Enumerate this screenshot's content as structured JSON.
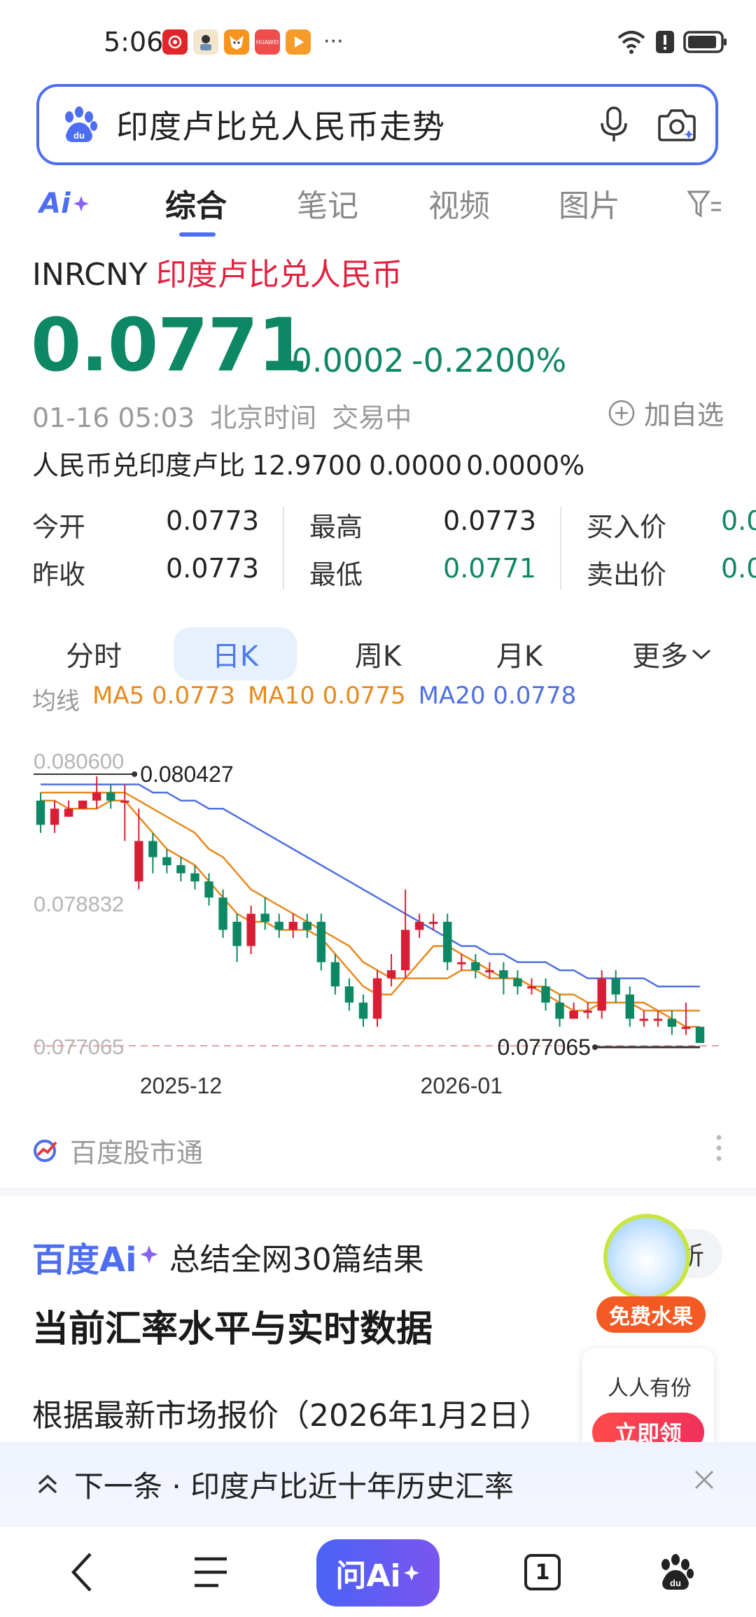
{
  "status_bar": {
    "time": "5:06",
    "notification_icons": [
      "netease-music-icon",
      "game-avatar-icon",
      "fox-app-icon",
      "huawei-icon",
      "video-play-icon"
    ],
    "notification_badge_text": "HUAWEI",
    "more": "···",
    "right_icons": [
      "wifi-icon",
      "alert-icon",
      "battery-icon"
    ]
  },
  "search": {
    "query": "印度卢比兑人民币走势",
    "icons": [
      "baidu-paw-icon",
      "microphone-icon",
      "camera-search-icon"
    ]
  },
  "tabs": {
    "ai_label": "Ai",
    "items": [
      "综合",
      "笔记",
      "视频",
      "图片"
    ],
    "active": "综合",
    "filter_icon": "filter-icon"
  },
  "quote": {
    "symbol": "INRCNY",
    "name": "印度卢比兑人民币",
    "price": "0.0771",
    "change": "-0.0002",
    "change_pct": "-0.2200%",
    "timestamp": "01-16 05:03",
    "timezone": "北京时间",
    "status": "交易中",
    "add_fav": "加自选",
    "reverse_label": "人民币兑印度卢比",
    "reverse_price": "12.9700",
    "reverse_change": "0.0000",
    "reverse_pct": "0.0000%"
  },
  "stats": {
    "open_label": "今开",
    "open": "0.0773",
    "prev_close_label": "昨收",
    "prev_close": "0.0773",
    "high_label": "最高",
    "high": "0.0773",
    "low_label": "最低",
    "low": "0.0771",
    "bid_label": "买入价",
    "bid": "0.0",
    "ask_label": "卖出价",
    "ask": "0.0"
  },
  "period_tabs": {
    "items": [
      "分时",
      "日K",
      "周K",
      "月K",
      "更多"
    ],
    "active": "日K"
  },
  "ma": {
    "label": "均线",
    "ma5": "MA5 0.0773",
    "ma10": "MA10 0.0775",
    "ma20": "MA20 0.0778",
    "colors": {
      "ma5": "#e8891c",
      "ma10": "#e8891c",
      "ma20": "#4e6fe0"
    }
  },
  "chart_data": {
    "type": "candlestick",
    "y_ticks": [
      "0.080600",
      "0.078832",
      "0.077065"
    ],
    "ylim": [
      0.077065,
      0.0806
    ],
    "x_ticks": [
      "2025-12",
      "2026-01"
    ],
    "max_label": "0.080427",
    "min_label": "0.077065",
    "up_color": "#d81e35",
    "down_color": "#0e8764",
    "candles": [
      {
        "o": 0.0801,
        "c": 0.0798,
        "h": 0.0802,
        "l": 0.0797
      },
      {
        "o": 0.0798,
        "c": 0.08,
        "h": 0.0801,
        "l": 0.0797
      },
      {
        "o": 0.0799,
        "c": 0.08,
        "h": 0.0801,
        "l": 0.0799
      },
      {
        "o": 0.08,
        "c": 0.0801,
        "h": 0.0801,
        "l": 0.08
      },
      {
        "o": 0.0801,
        "c": 0.0802,
        "h": 0.0804,
        "l": 0.08
      },
      {
        "o": 0.0802,
        "c": 0.0801,
        "h": 0.0803,
        "l": 0.08
      },
      {
        "o": 0.0801,
        "c": 0.0801,
        "h": 0.0803,
        "l": 0.0796
      },
      {
        "o": 0.0791,
        "c": 0.0796,
        "h": 0.08,
        "l": 0.079
      },
      {
        "o": 0.0796,
        "c": 0.0794,
        "h": 0.0797,
        "l": 0.0792
      },
      {
        "o": 0.0794,
        "c": 0.0793,
        "h": 0.0795,
        "l": 0.0792
      },
      {
        "o": 0.0793,
        "c": 0.0792,
        "h": 0.0794,
        "l": 0.0791
      },
      {
        "o": 0.0792,
        "c": 0.0791,
        "h": 0.0793,
        "l": 0.079
      },
      {
        "o": 0.0791,
        "c": 0.0789,
        "h": 0.0792,
        "l": 0.0788
      },
      {
        "o": 0.0789,
        "c": 0.0785,
        "h": 0.079,
        "l": 0.0784
      },
      {
        "o": 0.0786,
        "c": 0.0783,
        "h": 0.0787,
        "l": 0.0781
      },
      {
        "o": 0.0783,
        "c": 0.0787,
        "h": 0.0788,
        "l": 0.0782
      },
      {
        "o": 0.0787,
        "c": 0.0786,
        "h": 0.0789,
        "l": 0.0785
      },
      {
        "o": 0.0786,
        "c": 0.0785,
        "h": 0.0787,
        "l": 0.0784
      },
      {
        "o": 0.0785,
        "c": 0.0786,
        "h": 0.0787,
        "l": 0.0784
      },
      {
        "o": 0.0786,
        "c": 0.0785,
        "h": 0.0787,
        "l": 0.0784
      },
      {
        "o": 0.0786,
        "c": 0.0781,
        "h": 0.0787,
        "l": 0.078
      },
      {
        "o": 0.0781,
        "c": 0.0778,
        "h": 0.0782,
        "l": 0.0777
      },
      {
        "o": 0.0778,
        "c": 0.0776,
        "h": 0.0779,
        "l": 0.0775
      },
      {
        "o": 0.0776,
        "c": 0.0774,
        "h": 0.0777,
        "l": 0.0773
      },
      {
        "o": 0.0774,
        "c": 0.0779,
        "h": 0.078,
        "l": 0.0773
      },
      {
        "o": 0.0779,
        "c": 0.078,
        "h": 0.0782,
        "l": 0.0778
      },
      {
        "o": 0.078,
        "c": 0.0785,
        "h": 0.079,
        "l": 0.0779
      },
      {
        "o": 0.0785,
        "c": 0.0786,
        "h": 0.0787,
        "l": 0.0784
      },
      {
        "o": 0.0786,
        "c": 0.0786,
        "h": 0.0787,
        "l": 0.0785
      },
      {
        "o": 0.0786,
        "c": 0.0781,
        "h": 0.0787,
        "l": 0.078
      },
      {
        "o": 0.0781,
        "c": 0.0781,
        "h": 0.0782,
        "l": 0.078
      },
      {
        "o": 0.0781,
        "c": 0.078,
        "h": 0.0782,
        "l": 0.0779
      },
      {
        "o": 0.078,
        "c": 0.078,
        "h": 0.0781,
        "l": 0.0779
      },
      {
        "o": 0.078,
        "c": 0.0779,
        "h": 0.0781,
        "l": 0.0777
      },
      {
        "o": 0.0779,
        "c": 0.0778,
        "h": 0.078,
        "l": 0.0777
      },
      {
        "o": 0.0778,
        "c": 0.0778,
        "h": 0.0779,
        "l": 0.0777
      },
      {
        "o": 0.0778,
        "c": 0.0776,
        "h": 0.0779,
        "l": 0.0775
      },
      {
        "o": 0.0776,
        "c": 0.0774,
        "h": 0.0777,
        "l": 0.0773
      },
      {
        "o": 0.0774,
        "c": 0.0775,
        "h": 0.0776,
        "l": 0.0774
      },
      {
        "o": 0.0775,
        "c": 0.0775,
        "h": 0.0776,
        "l": 0.0774
      },
      {
        "o": 0.0775,
        "c": 0.0779,
        "h": 0.078,
        "l": 0.0774
      },
      {
        "o": 0.0779,
        "c": 0.0777,
        "h": 0.078,
        "l": 0.0776
      },
      {
        "o": 0.0777,
        "c": 0.0774,
        "h": 0.0778,
        "l": 0.0773
      },
      {
        "o": 0.0774,
        "c": 0.0774,
        "h": 0.0775,
        "l": 0.0773
      },
      {
        "o": 0.0774,
        "c": 0.0774,
        "h": 0.0775,
        "l": 0.0773
      },
      {
        "o": 0.0774,
        "c": 0.0773,
        "h": 0.0775,
        "l": 0.0772
      },
      {
        "o": 0.0773,
        "c": 0.0773,
        "h": 0.0776,
        "l": 0.0772
      },
      {
        "o": 0.0773,
        "c": 0.0771,
        "h": 0.0773,
        "l": 0.0771
      }
    ],
    "ma5": [
      0.0801,
      0.0801,
      0.08,
      0.08,
      0.08,
      0.0801,
      0.0801,
      0.0799,
      0.0797,
      0.0795,
      0.0794,
      0.0793,
      0.0791,
      0.0789,
      0.0787,
      0.0786,
      0.0786,
      0.0785,
      0.0785,
      0.0785,
      0.0784,
      0.0782,
      0.078,
      0.0778,
      0.0777,
      0.0777,
      0.0779,
      0.0781,
      0.0783,
      0.0783,
      0.0782,
      0.0781,
      0.078,
      0.0779,
      0.0779,
      0.0778,
      0.0777,
      0.0776,
      0.0775,
      0.0775,
      0.0776,
      0.0776,
      0.0776,
      0.0776,
      0.0775,
      0.0774,
      0.0773,
      0.0773
    ],
    "ma10": [
      0.0802,
      0.0802,
      0.0802,
      0.0802,
      0.0802,
      0.0802,
      0.0802,
      0.0801,
      0.08,
      0.0799,
      0.0798,
      0.0797,
      0.0795,
      0.0794,
      0.0792,
      0.079,
      0.0789,
      0.0788,
      0.0787,
      0.0786,
      0.0785,
      0.0784,
      0.0783,
      0.0781,
      0.078,
      0.0779,
      0.0779,
      0.0779,
      0.0779,
      0.0779,
      0.078,
      0.078,
      0.0779,
      0.0779,
      0.0779,
      0.0778,
      0.0778,
      0.0777,
      0.0777,
      0.0776,
      0.0776,
      0.0776,
      0.0776,
      0.0775,
      0.0775,
      0.0775,
      0.0775,
      0.0775
    ],
    "ma20": [
      0.0803,
      0.0803,
      0.0803,
      0.0803,
      0.0803,
      0.0803,
      0.0803,
      0.0803,
      0.0802,
      0.0802,
      0.0801,
      0.0801,
      0.08,
      0.08,
      0.0799,
      0.0798,
      0.0797,
      0.0796,
      0.0795,
      0.0794,
      0.0793,
      0.0792,
      0.0791,
      0.079,
      0.0789,
      0.0788,
      0.0787,
      0.0786,
      0.0785,
      0.0784,
      0.0783,
      0.0783,
      0.0782,
      0.0782,
      0.0781,
      0.0781,
      0.0781,
      0.078,
      0.078,
      0.0779,
      0.0779,
      0.0779,
      0.0779,
      0.0779,
      0.0778,
      0.0778,
      0.0778,
      0.0778
    ]
  },
  "source": {
    "name": "百度股市通",
    "icon": "stock-app-icon"
  },
  "ai_section": {
    "brand": "百度Ai",
    "summary": "总结全网30篇结果",
    "title": "当前汇率水平与实时数据",
    "paragraph": "根据最新市场报价（2026年1月2日）",
    "more_button": "析"
  },
  "promo": {
    "tag": "免费水果",
    "text": "人人有份",
    "button": "立即领"
  },
  "next_banner": {
    "text": "下一条 · 印度卢比近十年历史汇率"
  },
  "bottom_nav": {
    "ask_ai": "问Ai",
    "tab_count": "1"
  }
}
